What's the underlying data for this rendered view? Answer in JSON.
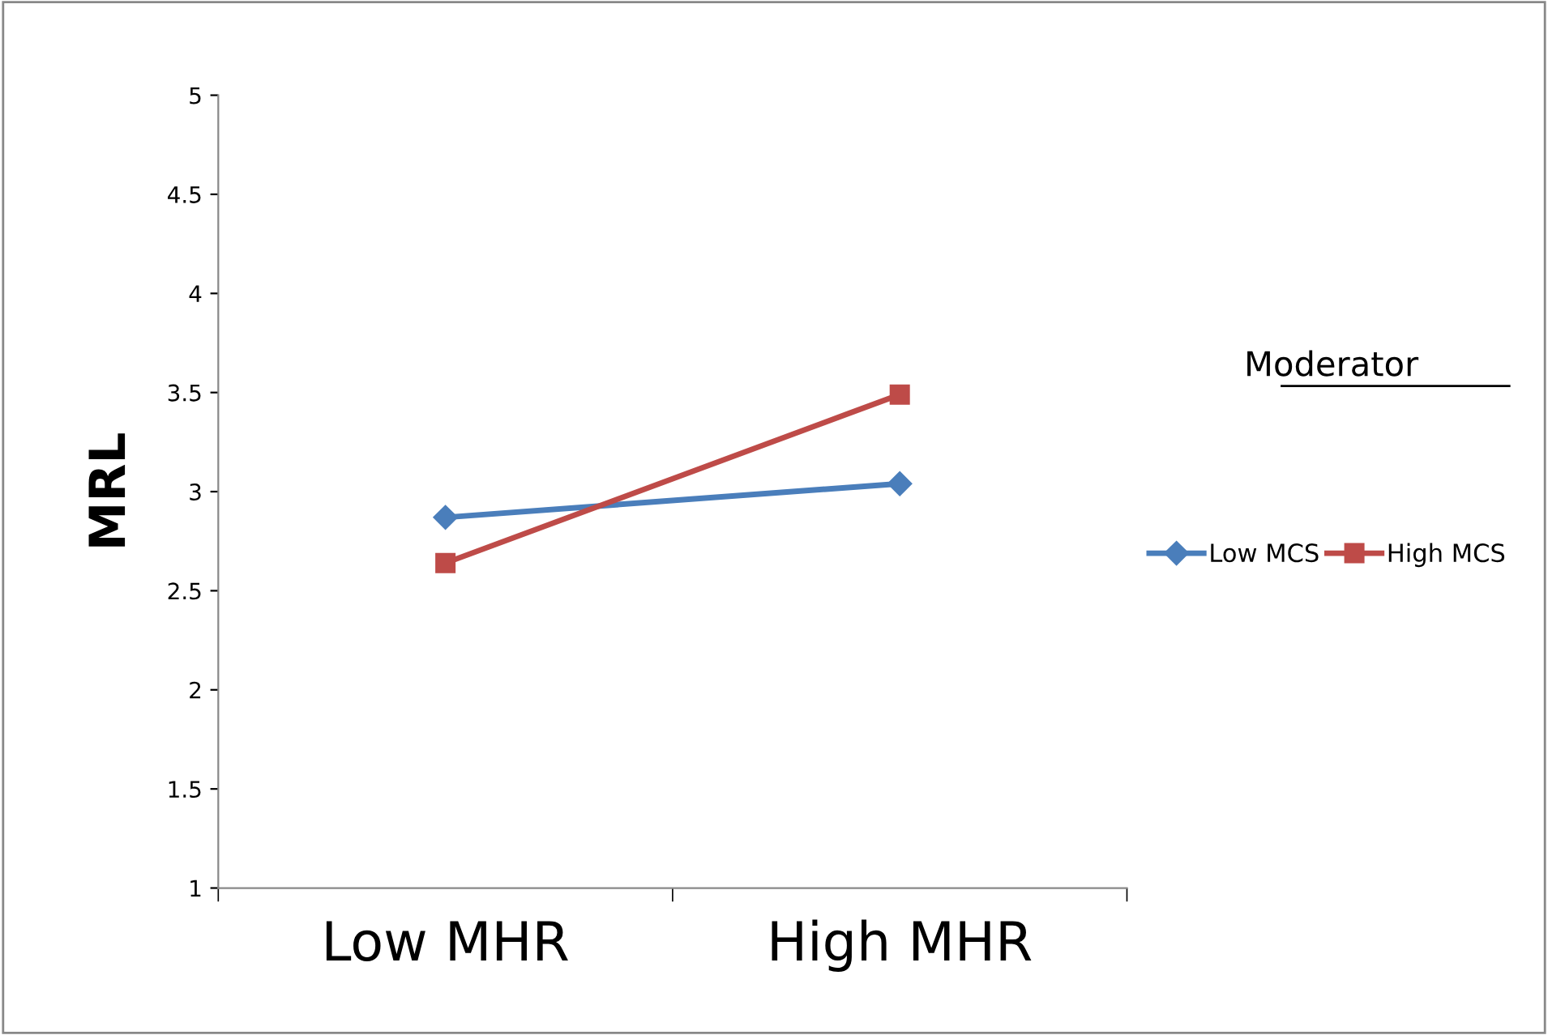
{
  "chart_data": {
    "type": "line",
    "ylabel": "MRL",
    "legend_title": "Moderator",
    "categories": [
      "Low MHR",
      "High MHR"
    ],
    "series": [
      {
        "name": "Low MCS",
        "color": "#4a7ebb",
        "marker": "diamond",
        "values": [
          2.87,
          3.04
        ]
      },
      {
        "name": "High MCS",
        "color": "#be4b48",
        "marker": "square",
        "values": [
          2.64,
          3.49
        ]
      }
    ],
    "ylim": [
      1,
      5
    ],
    "yticks": [
      1,
      1.5,
      2,
      2.5,
      3,
      3.5,
      4,
      4.5,
      5
    ],
    "grid": false,
    "legend": "right",
    "line_style": "solid"
  }
}
